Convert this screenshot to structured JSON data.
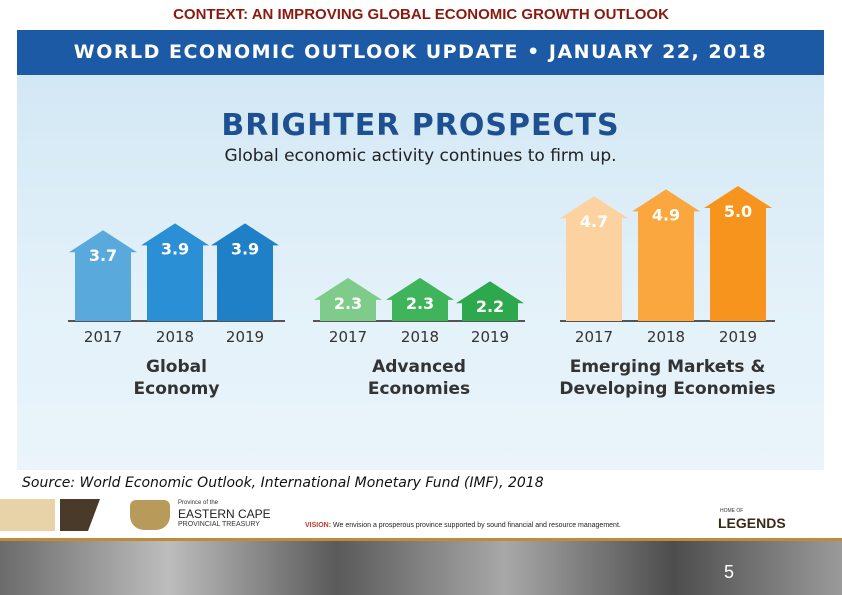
{
  "header": {
    "title": "CONTEXT: AN IMPROVING GLOBAL ECONOMIC GROWTH OUTLOOK"
  },
  "banner": "WORLD ECONOMIC OUTLOOK UPDATE • JANUARY 22, 2018",
  "headline": "BRIGHTER PROSPECTS",
  "subheadline": "Global economic activity continues to firm up.",
  "chart_data": [
    {
      "type": "bar",
      "title": "Global Economy",
      "categories": [
        "2017",
        "2018",
        "2019"
      ],
      "values": [
        3.7,
        3.9,
        3.9
      ],
      "colors": [
        "#5aa9dc",
        "#2a8fd4",
        "#1f80c8"
      ]
    },
    {
      "type": "bar",
      "title": "Advanced Economies",
      "categories": [
        "2017",
        "2018",
        "2019"
      ],
      "values": [
        2.3,
        2.3,
        2.2
      ],
      "colors": [
        "#7ecb8a",
        "#3fb45a",
        "#2ea84c"
      ]
    },
    {
      "type": "bar",
      "title": "Emerging Markets & Developing Economies",
      "categories": [
        "2017",
        "2018",
        "2019"
      ],
      "values": [
        4.7,
        4.9,
        5.0
      ],
      "value_labels": [
        "4.7",
        "4.9",
        "5.0"
      ],
      "colors": [
        "#fcd3a0",
        "#f9a73e",
        "#f7941d"
      ]
    }
  ],
  "source": "Source: World Economic Outlook, International Monetary Fund (IMF), 2018",
  "footer": {
    "province_small": "Province of the",
    "province": "EASTERN CAPE",
    "treasury": "PROVINCIAL TREASURY",
    "vision_label": "VISION:",
    "vision": "We envision a prosperous province supported by sound financial and resource management.",
    "home_of": "HOME OF",
    "legends": "LEGENDS",
    "page": "5"
  }
}
